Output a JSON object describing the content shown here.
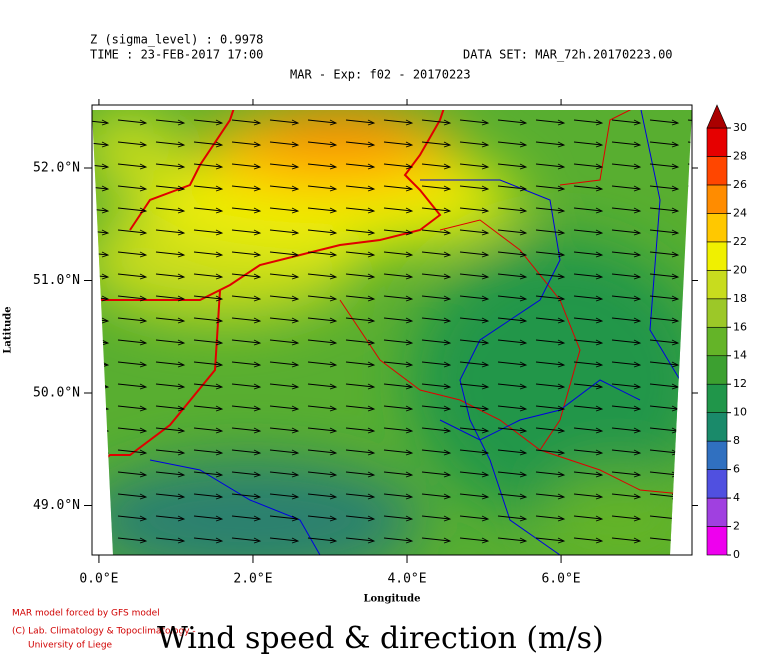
{
  "header": {
    "level": "Z (sigma_level) : 0.9978",
    "time": "TIME : 23-FEB-2017 17:00",
    "dataset": "DATA SET: MAR_72h.20170223.00",
    "title": "MAR - Exp: f02 - 20170223"
  },
  "map": {
    "xlim": [
      -0.09,
      7.7
    ],
    "ylim": [
      48.56,
      52.56
    ],
    "xticks": [
      {
        "value": 0,
        "label": "0.0°E"
      },
      {
        "value": 2,
        "label": "2.0°E"
      },
      {
        "value": 4,
        "label": "4.0°E"
      },
      {
        "value": 6,
        "label": "6.0°E"
      }
    ],
    "yticks": [
      {
        "value": 49,
        "label": "49.0°N"
      },
      {
        "value": 50,
        "label": "50.0°N"
      },
      {
        "value": 51,
        "label": "51.0°N"
      },
      {
        "value": 52,
        "label": "52.0°N"
      }
    ],
    "x_label": "Longitude",
    "y_label": "Latitude"
  },
  "colorbar": {
    "lim": [
      0,
      30
    ],
    "ticks": [
      0,
      2,
      4,
      6,
      8,
      10,
      12,
      14,
      16,
      18,
      20,
      22,
      24,
      26,
      28,
      30
    ],
    "colors": [
      "#ee00ee",
      "#a040e0",
      "#5050e0",
      "#3070c0",
      "#1a8a6a",
      "#20964a",
      "#3ca030",
      "#64b428",
      "#9cc828",
      "#c8dc1e",
      "#f0f000",
      "#ffc800",
      "#ff8c00",
      "#ff4600",
      "#e60000"
    ],
    "over_color": "#aa0000"
  },
  "footer": {
    "model": "MAR model forced by GFS model",
    "lab": "(C) Lab. Climatology & Topoclimatology -",
    "university": "University of Liege",
    "caption": "Wind speed & direction (m/s)"
  }
}
